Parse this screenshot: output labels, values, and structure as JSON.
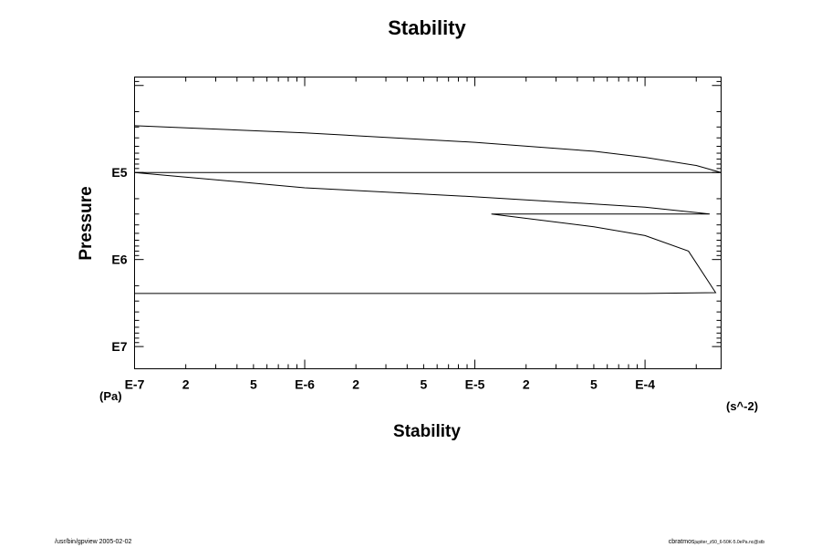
{
  "chart_data": {
    "type": "line",
    "title": "Stability",
    "xlabel": "Stability",
    "ylabel": "Pressure",
    "x_unit": "(s^-2)",
    "y_unit": "(Pa)",
    "xscale": "log",
    "yscale": "log",
    "yaxis_inverted": true,
    "xlim": [
      1e-07,
      0.00028
    ],
    "ylim": [
      8000,
      18000000
    ],
    "x_tick_labels": [
      {
        "value": 1e-07,
        "label": "E-7"
      },
      {
        "value": 2e-07,
        "label": "2"
      },
      {
        "value": 5e-07,
        "label": "5"
      },
      {
        "value": 1e-06,
        "label": "E-6"
      },
      {
        "value": 2e-06,
        "label": "2"
      },
      {
        "value": 5e-06,
        "label": "5"
      },
      {
        "value": 1e-05,
        "label": "E-5"
      },
      {
        "value": 2e-05,
        "label": "2"
      },
      {
        "value": 5e-05,
        "label": "5"
      },
      {
        "value": 0.0001,
        "label": "E-4"
      }
    ],
    "y_tick_labels": [
      {
        "value": 100000,
        "label": "E5"
      },
      {
        "value": 1000000,
        "label": "E6"
      },
      {
        "value": 10000000,
        "label": "E7"
      }
    ],
    "grid": false,
    "legend": "none",
    "series": [
      {
        "x": [
          1e-07,
          1e-06,
          1e-05,
          5e-05,
          0.0001,
          0.0002,
          0.00028,
          0.0002,
          0.0001,
          1e-05,
          1e-06,
          1e-07,
          1e-06,
          1e-05,
          0.0001,
          0.00024,
          0.0001,
          1.25e-05,
          5e-05,
          0.0001,
          0.00018,
          0.00026,
          0.0001,
          1e-05,
          1e-06,
          1e-07
        ],
        "y": [
          29000,
          35000,
          45000,
          57000,
          67000,
          83000,
          100000,
          100000,
          100000,
          100000,
          100000,
          100000,
          150000,
          190000,
          250000,
          300000,
          300000,
          300000,
          420000,
          530000,
          800000,
          2400000,
          2450000,
          2450000,
          2450000,
          2450000
        ]
      }
    ]
  },
  "footer": {
    "left": "/usr/bin/gpview 2005-02-02",
    "right_main": "cbratmos",
    "right_sub": "jupiter_z50_6-50K-5.0ePa.nc@stb"
  }
}
